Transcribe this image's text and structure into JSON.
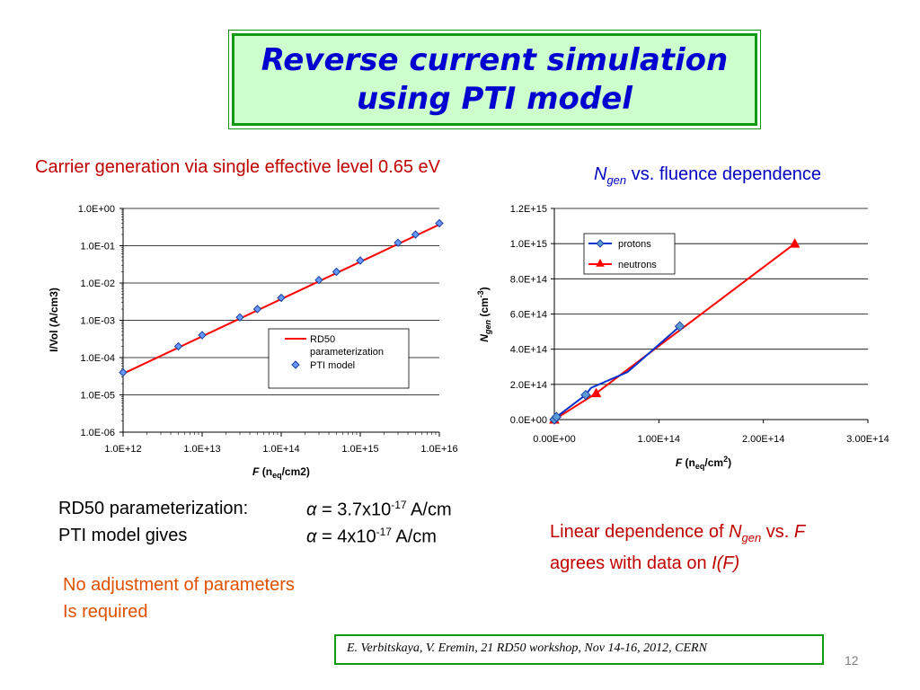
{
  "title": {
    "line1": "Reverse current simulation",
    "line2": "using PTI model"
  },
  "left_caption": "Carrier generation via single effective level 0.65 eV",
  "right_caption": {
    "n": "N",
    "sub": "gen",
    "rest": " vs. fluence dependence"
  },
  "rd50_line": {
    "label": "RD50 parameterization:",
    "alpha": "α",
    "eq": " = 3.7x10",
    "exp": "-17",
    "unit": " A/cm"
  },
  "pti_line": {
    "label": "PTI model gives",
    "alpha": "α",
    "eq": " = 4x10",
    "exp": "-17",
    "unit": " A/cm"
  },
  "note_red": {
    "line1": "No adjustment of parameters",
    "line2": "Is required"
  },
  "note_right": {
    "p1": "Linear dependence of ",
    "n": "N",
    "sub": "gen",
    "p2": " vs. ",
    "f": "F",
    "line2a": "agrees with data on ",
    "line2b": "I(F)"
  },
  "citation": "E. Verbitskaya, V. Eremin, 21 RD50 workshop, Nov 14-16, 2012, CERN",
  "page_number": "12",
  "colors": {
    "title_blue": "#0000d0",
    "title_bg": "#ccffcc",
    "border_green": "#109a10",
    "red_text": "#c00000",
    "series_blue": "#0033cc",
    "series_red": "#ff0000",
    "marker_fill": "#6699ff"
  },
  "chart_data": [
    {
      "type": "line",
      "log_x": true,
      "log_y": true,
      "xlim": [
        1000000000000.0,
        1e+16
      ],
      "ylim": [
        1e-06,
        1
      ],
      "x_ticks": [
        "1.0E+12",
        "1.0E+13",
        "1.0E+14",
        "1.0E+15",
        "1.0E+16"
      ],
      "y_ticks": [
        "1.0E-06",
        "1.0E-05",
        "1.0E-04",
        "1.0E-03",
        "1.0E-02",
        "1.0E-01",
        "1.0E+00"
      ],
      "xlabel": {
        "f": "F",
        "pre": " (n",
        "sub": "eq",
        "post": "/cm2)"
      },
      "ylabel": "I/Vol  (A/cm3)",
      "legend_position": "bottom-right",
      "grid": true,
      "series": [
        {
          "name": "RD50 parameterization",
          "style": "line",
          "color": "#ff0000",
          "x": [
            1000000000000.0,
            1e+16
          ],
          "y": [
            3.7e-05,
            0.37
          ]
        },
        {
          "name": "PTI model",
          "style": "diamond",
          "color": "#6699ff",
          "x": [
            1000000000000.0,
            5000000000000.0,
            10000000000000.0,
            30000000000000.0,
            50000000000000.0,
            100000000000000.0,
            300000000000000.0,
            500000000000000.0,
            1000000000000000.0,
            3000000000000000.0,
            5000000000000000.0,
            1e+16
          ],
          "y": [
            4e-05,
            0.0002,
            0.0004,
            0.0012,
            0.002,
            0.004,
            0.012,
            0.02,
            0.04,
            0.12,
            0.2,
            0.4
          ]
        }
      ]
    },
    {
      "type": "line",
      "xlim": [
        0,
        300000000000000.0
      ],
      "ylim": [
        0,
        1200000000000000.0
      ],
      "x_ticks": [
        "0.00E+00",
        "1.00E+14",
        "2.00E+14",
        "3.00E+14"
      ],
      "y_ticks": [
        "0.0E+00",
        "2.0E+14",
        "4.0E+14",
        "6.0E+14",
        "8.0E+14",
        "1.0E+15",
        "1.2E+15"
      ],
      "xlabel": {
        "f": "F",
        "pre": " (n",
        "sub": "eq",
        "post": "/cm",
        "sup": "2",
        "close": ")"
      },
      "ylabel": {
        "n": "N",
        "sub": "gen",
        "pre": " (cm",
        "sup": "-3",
        "close": ")"
      },
      "legend_position": "top-left",
      "grid": true,
      "series": [
        {
          "name": "protons",
          "marker": "diamond",
          "color": "#0033cc",
          "x": [
            0,
            2000000000000.0,
            30000000000000.0,
            35000000000000.0,
            70000000000000.0,
            120000000000000.0
          ],
          "y": [
            0,
            15000000000000.0,
            140000000000000.0,
            180000000000000.0,
            270000000000000.0,
            530000000000000.0
          ],
          "marker_index": [
            0,
            1,
            2,
            5
          ]
        },
        {
          "name": "neutrons",
          "marker": "triangle",
          "color": "#ff0000",
          "x": [
            0,
            40000000000000.0,
            230000000000000.0
          ],
          "y": [
            0,
            150000000000000.0,
            1000000000000000.0
          ]
        }
      ]
    }
  ]
}
